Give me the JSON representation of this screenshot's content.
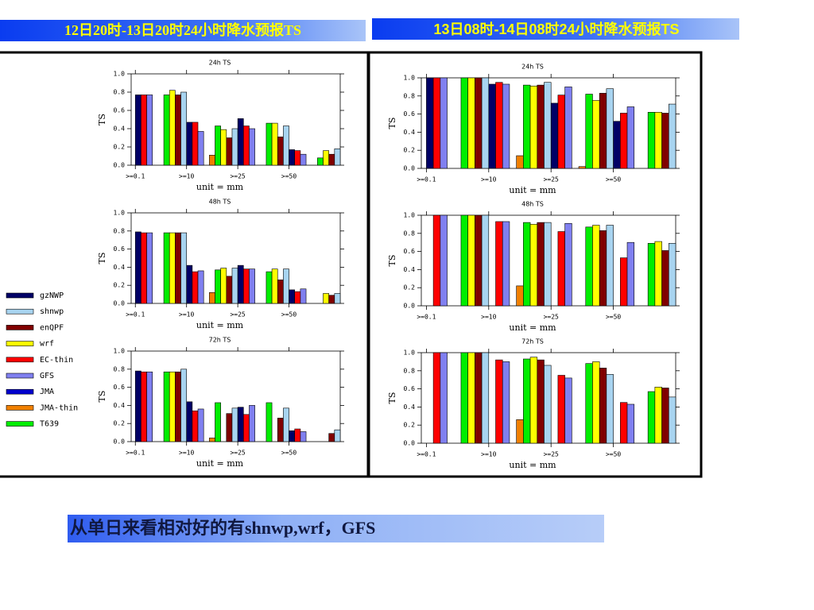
{
  "headers": [
    "12日20时-13日20时24小时降水预报TS",
    "13日08时-14日08时24小时降水预报TS"
  ],
  "caption": "从单日来看相对好的有shnwp,wrf，GFS",
  "legend": [
    {
      "name": "gzNWP",
      "color": "#000066"
    },
    {
      "name": "shnwp",
      "color": "#a8d4f0"
    },
    {
      "name": "enQPF",
      "color": "#800000"
    },
    {
      "name": "wrf",
      "color": "#ffff00"
    },
    {
      "name": "EC-thin",
      "color": "#ff0000"
    },
    {
      "name": "GFS",
      "color": "#8080f0"
    },
    {
      "name": "JMA",
      "color": "#0000cc"
    },
    {
      "name": "JMA-thin",
      "color": "#f08000"
    },
    {
      "name": "T639",
      "color": "#00ee00"
    }
  ],
  "chart_data": [
    {
      "type": "bar",
      "title": "24h TS",
      "xlabel": "unit = mm",
      "ylabel": "TS",
      "categories": [
        ">=0.1",
        ">=10",
        ">=25",
        ">=50"
      ],
      "ylim": [
        0,
        1
      ],
      "yticks": [
        {
          "value": 0,
          "label": "0.0"
        },
        {
          "value": 0.2,
          "label": "0.2"
        },
        {
          "value": 0.4,
          "label": "0.4"
        },
        {
          "value": 0.6,
          "label": "0.6"
        },
        {
          "value": 0.8,
          "label": "0.8"
        },
        {
          "value": 1,
          "label": "1.0"
        }
      ],
      "series": [
        {
          "values": [
            0.77,
            0.47,
            0.51,
            0.17
          ]
        },
        {
          "values": [
            0.8,
            0.4,
            0.43,
            0.18
          ]
        },
        {
          "values": [
            0.77,
            0.3,
            0.31,
            0.12
          ]
        },
        {
          "values": [
            0.82,
            0.39,
            0.46,
            0.16
          ]
        },
        {
          "values": [
            0.77,
            0.47,
            0.43,
            0.16
          ]
        },
        {
          "values": [
            0.77,
            0.37,
            0.4,
            0.12
          ]
        },
        {
          "values": [
            null,
            null,
            null,
            null
          ]
        },
        {
          "values": [
            null,
            0.11,
            null,
            null
          ]
        },
        {
          "values": [
            0.77,
            0.43,
            0.46,
            0.08
          ]
        }
      ]
    },
    {
      "type": "bar",
      "title": "48h TS",
      "xlabel": "unit = mm",
      "ylabel": "TS",
      "categories": [
        ">=0.1",
        ">=10",
        ">=25",
        ">=50"
      ],
      "ylim": [
        0,
        1
      ],
      "yticks": [
        {
          "value": 0,
          "label": "0.0"
        },
        {
          "value": 0.2,
          "label": "0.2"
        },
        {
          "value": 0.4,
          "label": "0.4"
        },
        {
          "value": 0.6,
          "label": "0.6"
        },
        {
          "value": 0.8,
          "label": "0.8"
        },
        {
          "value": 1,
          "label": "1.0"
        }
      ],
      "series": [
        {
          "values": [
            0.79,
            0.42,
            0.42,
            0.15
          ]
        },
        {
          "values": [
            0.78,
            0.39,
            0.38,
            0.11
          ]
        },
        {
          "values": [
            0.78,
            0.3,
            0.26,
            0.09
          ]
        },
        {
          "values": [
            0.78,
            0.39,
            0.38,
            0.11
          ]
        },
        {
          "values": [
            0.78,
            0.35,
            0.38,
            0.13
          ]
        },
        {
          "values": [
            0.78,
            0.36,
            0.38,
            0.16
          ]
        },
        {
          "values": [
            null,
            null,
            null,
            null
          ]
        },
        {
          "values": [
            null,
            0.12,
            null,
            null
          ]
        },
        {
          "values": [
            0.78,
            0.37,
            0.35,
            null
          ]
        }
      ]
    },
    {
      "type": "bar",
      "title": "72h TS",
      "xlabel": "unit = mm",
      "ylabel": "TS",
      "categories": [
        ">=0.1",
        ">=10",
        ">=25",
        ">=50"
      ],
      "ylim": [
        0,
        1
      ],
      "yticks": [
        {
          "value": 0,
          "label": "0.0"
        },
        {
          "value": 0.2,
          "label": "0.2"
        },
        {
          "value": 0.4,
          "label": "0.4"
        },
        {
          "value": 0.6,
          "label": "0.6"
        },
        {
          "value": 0.8,
          "label": "0.8"
        },
        {
          "value": 1,
          "label": "1.0"
        }
      ],
      "series": [
        {
          "values": [
            0.78,
            0.44,
            0.38,
            0.12
          ]
        },
        {
          "values": [
            0.8,
            0.37,
            0.37,
            0.13
          ]
        },
        {
          "values": [
            0.77,
            0.31,
            0.26,
            0.09
          ]
        },
        {
          "values": [
            0.77,
            null,
            null,
            null
          ]
        },
        {
          "values": [
            0.77,
            0.34,
            0.3,
            0.14
          ]
        },
        {
          "values": [
            0.77,
            0.36,
            0.4,
            0.11
          ]
        },
        {
          "values": [
            null,
            null,
            null,
            null
          ]
        },
        {
          "values": [
            null,
            0.04,
            null,
            null
          ]
        },
        {
          "values": [
            0.77,
            0.43,
            0.43,
            null
          ]
        }
      ]
    },
    {
      "type": "bar",
      "title": "24h TS",
      "xlabel": "unit = mm",
      "ylabel": "TS",
      "categories": [
        ">=0.1",
        ">=10",
        ">=25",
        ">=50"
      ],
      "ylim": [
        0,
        1
      ],
      "yticks": [
        {
          "value": 0,
          "label": "0.0"
        },
        {
          "value": 0.2,
          "label": "0.2"
        },
        {
          "value": 0.4,
          "label": "0.4"
        },
        {
          "value": 0.6,
          "label": "0.6"
        },
        {
          "value": 0.8,
          "label": "0.8"
        },
        {
          "value": 1,
          "label": "1.0"
        }
      ],
      "series": [
        {
          "values": [
            1,
            0.93,
            0.72,
            0.52
          ]
        },
        {
          "values": [
            1,
            0.95,
            0.88,
            0.71
          ]
        },
        {
          "values": [
            1,
            0.92,
            0.83,
            0.61
          ]
        },
        {
          "values": [
            1,
            0.91,
            0.75,
            0.62
          ]
        },
        {
          "values": [
            1,
            0.95,
            0.81,
            0.61
          ]
        },
        {
          "values": [
            1,
            0.93,
            0.9,
            0.68
          ]
        },
        {
          "values": [
            null,
            null,
            null,
            null
          ]
        },
        {
          "values": [
            null,
            0.14,
            0.02,
            null
          ]
        },
        {
          "values": [
            1,
            0.92,
            0.82,
            0.62
          ]
        }
      ]
    },
    {
      "type": "bar",
      "title": "48h TS",
      "xlabel": "unit = mm",
      "ylabel": "TS",
      "categories": [
        ">=0.1",
        ">=10",
        ">=25",
        ">=50"
      ],
      "ylim": [
        0,
        1
      ],
      "yticks": [
        {
          "value": 0,
          "label": "0.0"
        },
        {
          "value": 0.2,
          "label": "0.2"
        },
        {
          "value": 0.4,
          "label": "0.4"
        },
        {
          "value": 0.6,
          "label": "0.6"
        },
        {
          "value": 0.8,
          "label": "0.8"
        },
        {
          "value": 1,
          "label": "1.0"
        }
      ],
      "series": [
        {
          "values": [
            null,
            null,
            null,
            null
          ]
        },
        {
          "values": [
            1,
            0.92,
            0.89,
            0.69
          ]
        },
        {
          "values": [
            1,
            0.92,
            0.83,
            0.61
          ]
        },
        {
          "values": [
            1,
            0.9,
            0.89,
            0.71
          ]
        },
        {
          "values": [
            1,
            0.93,
            0.82,
            0.53
          ]
        },
        {
          "values": [
            1,
            0.93,
            0.91,
            0.7
          ]
        },
        {
          "values": [
            null,
            null,
            null,
            null
          ]
        },
        {
          "values": [
            null,
            0.22,
            null,
            null
          ]
        },
        {
          "values": [
            1,
            0.92,
            0.87,
            0.69
          ]
        }
      ]
    },
    {
      "type": "bar",
      "title": "72h TS",
      "xlabel": "unit = mm",
      "ylabel": "TS",
      "categories": [
        ">=0.1",
        ">=10",
        ">=25",
        ">=50"
      ],
      "ylim": [
        0,
        1
      ],
      "yticks": [
        {
          "value": 0,
          "label": "0.0"
        },
        {
          "value": 0.2,
          "label": "0.2"
        },
        {
          "value": 0.4,
          "label": "0.4"
        },
        {
          "value": 0.6,
          "label": "0.6"
        },
        {
          "value": 0.8,
          "label": "0.8"
        },
        {
          "value": 1,
          "label": "1.0"
        }
      ],
      "series": [
        {
          "values": [
            null,
            null,
            null,
            null
          ]
        },
        {
          "values": [
            1,
            0.86,
            0.76,
            0.51
          ]
        },
        {
          "values": [
            1,
            0.92,
            0.83,
            0.61
          ]
        },
        {
          "values": [
            1,
            0.95,
            0.9,
            0.62
          ]
        },
        {
          "values": [
            1,
            0.92,
            0.75,
            0.45
          ]
        },
        {
          "values": [
            1,
            0.9,
            0.72,
            0.43
          ]
        },
        {
          "values": [
            null,
            null,
            null,
            null
          ]
        },
        {
          "values": [
            null,
            0.26,
            null,
            null
          ]
        },
        {
          "values": [
            1,
            0.93,
            0.88,
            0.57
          ]
        }
      ]
    }
  ]
}
